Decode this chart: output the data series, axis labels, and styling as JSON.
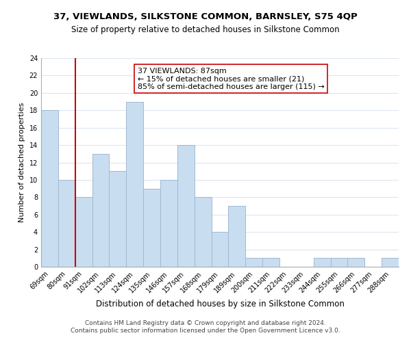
{
  "title": "37, VIEWLANDS, SILKSTONE COMMON, BARNSLEY, S75 4QP",
  "subtitle": "Size of property relative to detached houses in Silkstone Common",
  "xlabel": "Distribution of detached houses by size in Silkstone Common",
  "ylabel": "Number of detached properties",
  "footer_lines": [
    "Contains HM Land Registry data © Crown copyright and database right 2024.",
    "Contains public sector information licensed under the Open Government Licence v3.0."
  ],
  "bin_labels": [
    "69sqm",
    "80sqm",
    "91sqm",
    "102sqm",
    "113sqm",
    "124sqm",
    "135sqm",
    "146sqm",
    "157sqm",
    "168sqm",
    "179sqm",
    "189sqm",
    "200sqm",
    "211sqm",
    "222sqm",
    "233sqm",
    "244sqm",
    "255sqm",
    "266sqm",
    "277sqm",
    "288sqm"
  ],
  "bar_heights": [
    18,
    10,
    8,
    13,
    11,
    19,
    9,
    10,
    14,
    8,
    4,
    7,
    1,
    1,
    0,
    0,
    1,
    1,
    1,
    0,
    1
  ],
  "bar_color": "#c9ddf0",
  "bar_edge_color": "#a0b8d0",
  "vline_color": "#cc0000",
  "annotation_box_text": "37 VIEWLANDS: 87sqm\n← 15% of detached houses are smaller (21)\n85% of semi-detached houses are larger (115) →",
  "annotation_box_color": "#ffffff",
  "annotation_box_edge_color": "#cc0000",
  "ylim": [
    0,
    24
  ],
  "yticks": [
    0,
    2,
    4,
    6,
    8,
    10,
    12,
    14,
    16,
    18,
    20,
    22,
    24
  ],
  "background_color": "#ffffff",
  "grid_color": "#dce6f1",
  "title_fontsize": 9.5,
  "subtitle_fontsize": 8.5,
  "xlabel_fontsize": 8.5,
  "ylabel_fontsize": 8.0,
  "tick_fontsize": 7.0,
  "annotation_fontsize": 8.0,
  "footer_fontsize": 6.5
}
